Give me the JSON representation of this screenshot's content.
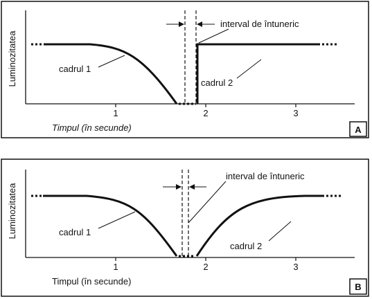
{
  "panels": [
    {
      "label": "A",
      "y_label": "Luminozitatea",
      "x_label": "Timpul (în secunde)",
      "ticks": [
        1,
        2,
        3
      ],
      "interval": "interval de întuneric",
      "frame1": "cadrul 1",
      "frame2": "cadrul 2"
    },
    {
      "label": "B",
      "y_label": "Luminozitatea",
      "x_label": "Timpul (în secunde)",
      "ticks": [
        1,
        2,
        3
      ],
      "interval": "interval de întuneric",
      "frame1": "cadrul 1",
      "frame2": "cadrul 2"
    }
  ]
}
